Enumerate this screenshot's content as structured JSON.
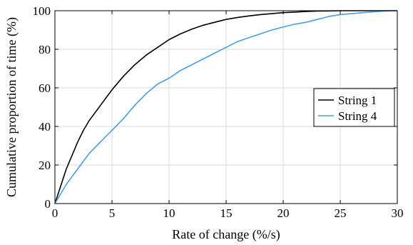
{
  "chart_data": {
    "type": "line",
    "title": "",
    "xlabel": "Rate of change (%/s)",
    "ylabel": "Cumulative proportion of time (%)",
    "xlim": [
      0,
      30
    ],
    "ylim": [
      0,
      100
    ],
    "xticks": [
      0,
      5,
      10,
      15,
      20,
      25,
      30
    ],
    "yticks": [
      0,
      20,
      40,
      60,
      80,
      100
    ],
    "xtick_labels": [
      "0",
      "5",
      "10",
      "15",
      "20",
      "25",
      "30"
    ],
    "ytick_labels": [
      "0",
      "20",
      "40",
      "60",
      "80",
      "100"
    ],
    "grid": true,
    "legend_position": "right",
    "series": [
      {
        "name": "String 1",
        "color": "#000000",
        "x": [
          0,
          0.5,
          1,
          1.5,
          2,
          2.5,
          3,
          3.5,
          4,
          4.5,
          5,
          6,
          7,
          8,
          9,
          10,
          11,
          12,
          13,
          14,
          15,
          16,
          17,
          18,
          19,
          20,
          21,
          22,
          23,
          24,
          25,
          26,
          27,
          28,
          29,
          30
        ],
        "y": [
          0,
          9,
          18,
          25,
          32,
          38,
          43,
          47,
          51,
          55,
          59,
          66,
          72,
          77,
          81,
          85,
          88,
          90.5,
          92.5,
          94,
          95.5,
          96.5,
          97.3,
          98,
          98.5,
          99,
          99.3,
          99.6,
          99.8,
          99.9,
          100,
          100,
          100,
          100,
          100,
          100
        ]
      },
      {
        "name": "String 4",
        "color": "#4a9ee0",
        "x": [
          0,
          0.5,
          1,
          1.5,
          2,
          2.5,
          3,
          3.5,
          4,
          4.5,
          5,
          6,
          7,
          8,
          9,
          10,
          11,
          12,
          13,
          14,
          15,
          16,
          17,
          18,
          19,
          20,
          21,
          22,
          23,
          24,
          25,
          26,
          27,
          28,
          29,
          30
        ],
        "y": [
          0,
          5,
          10,
          14,
          18,
          22,
          26,
          29,
          32,
          35,
          38,
          44,
          51,
          57,
          62,
          65,
          69,
          72,
          75,
          78,
          81,
          84,
          86,
          88,
          90,
          91.5,
          93,
          94,
          95.5,
          97,
          98,
          98.5,
          99,
          99.5,
          99.8,
          100
        ]
      }
    ]
  }
}
